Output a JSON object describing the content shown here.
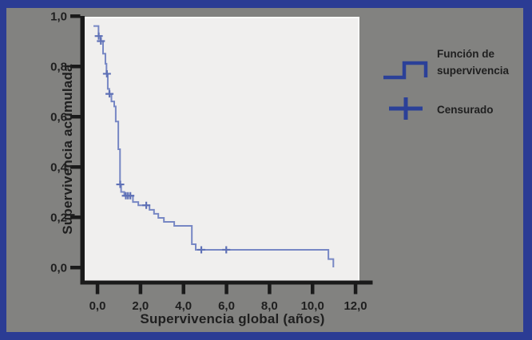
{
  "chart_data": {
    "type": "line",
    "subtype": "kaplan-meier-step",
    "title": "",
    "xlabel": "Supervivencia global (años)",
    "ylabel": "Supervivencia acumulada",
    "xlim": [
      0,
      12.4
    ],
    "ylim": [
      0,
      1.0
    ],
    "grid": false,
    "legend_position": "right-outside",
    "x_ticks": {
      "values": [
        0,
        2,
        4,
        6,
        8,
        10,
        12
      ],
      "labels": [
        "0,0",
        "2,0",
        "4,0",
        "6,0",
        "8,0",
        "10,0",
        "12,0"
      ]
    },
    "y_ticks": {
      "values": [
        0,
        0.2,
        0.4,
        0.6,
        0.8,
        1.0
      ],
      "labels": [
        "0,0",
        "0,2",
        "0,4",
        "0,6",
        "0,8",
        "1,0"
      ]
    },
    "series": [
      {
        "name": "Función de supervivencia",
        "type": "step",
        "color": "#7787c4",
        "points": [
          {
            "t": 0.0,
            "s": 0.96
          },
          {
            "t": 0.05,
            "s": 0.92
          },
          {
            "t": 0.15,
            "s": 0.9
          },
          {
            "t": 0.26,
            "s": 0.85
          },
          {
            "t": 0.37,
            "s": 0.81
          },
          {
            "t": 0.42,
            "s": 0.77
          },
          {
            "t": 0.48,
            "s": 0.71
          },
          {
            "t": 0.55,
            "s": 0.69
          },
          {
            "t": 0.65,
            "s": 0.66
          },
          {
            "t": 0.78,
            "s": 0.64
          },
          {
            "t": 0.85,
            "s": 0.58
          },
          {
            "t": 0.97,
            "s": 0.47
          },
          {
            "t": 1.05,
            "s": 0.33
          },
          {
            "t": 1.1,
            "s": 0.3
          },
          {
            "t": 1.25,
            "s": 0.285
          },
          {
            "t": 1.65,
            "s": 0.26
          },
          {
            "t": 1.9,
            "s": 0.247
          },
          {
            "t": 2.42,
            "s": 0.229
          },
          {
            "t": 2.63,
            "s": 0.213
          },
          {
            "t": 2.83,
            "s": 0.197
          },
          {
            "t": 3.09,
            "s": 0.181
          },
          {
            "t": 3.57,
            "s": 0.165
          },
          {
            "t": 4.39,
            "s": 0.092
          },
          {
            "t": 4.57,
            "s": 0.07
          },
          {
            "t": 10.74,
            "s": 0.033
          },
          {
            "t": 10.97,
            "s": 0.0
          }
        ]
      }
    ],
    "censored_points": {
      "name": "Censurado",
      "marker": "plus",
      "color": "#5f71b6",
      "points": [
        {
          "t": 0.06,
          "s": 0.92
        },
        {
          "t": 0.16,
          "s": 0.9
        },
        {
          "t": 0.44,
          "s": 0.77
        },
        {
          "t": 0.56,
          "s": 0.69
        },
        {
          "t": 1.06,
          "s": 0.33
        },
        {
          "t": 1.32,
          "s": 0.285
        },
        {
          "t": 1.42,
          "s": 0.285
        },
        {
          "t": 1.53,
          "s": 0.285
        },
        {
          "t": 2.27,
          "s": 0.247
        },
        {
          "t": 4.83,
          "s": 0.07
        },
        {
          "t": 5.99,
          "s": 0.07
        }
      ]
    },
    "legend": [
      {
        "label": "Función de supervivencia",
        "symbol": "step-line-icon"
      },
      {
        "label": "Censurado",
        "symbol": "plus-icon"
      }
    ]
  },
  "colors": {
    "frame": "#2b3c94",
    "background": "#828280",
    "plot_background": "#f0efee",
    "plot_highlight_edge": "#fafaf8",
    "axis": "#1a1a1a",
    "text": "#1f1f1f",
    "curve": "#7787c4",
    "censor_marker": "#5f71b6",
    "legend_symbol": "#2b4098"
  }
}
